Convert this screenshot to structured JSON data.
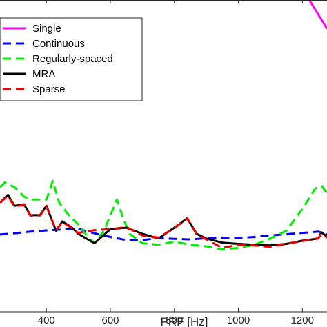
{
  "chart_data": {
    "type": "line",
    "xlabel": "PRF [Hz]",
    "ylabel": "",
    "title": "",
    "xlim": [
      255,
      1277
    ],
    "ylim": [
      0,
      1
    ],
    "x_ticks": [
      400,
      600,
      800,
      1000,
      1200
    ],
    "x_tick_labels": [
      "400",
      "600",
      "800",
      "1000",
      "1200"
    ],
    "grid": false,
    "legend_placement": "top-left",
    "series": [
      {
        "name": "Single",
        "color": "#ff00ff",
        "dash": "solid",
        "x": [
          1210,
          1277
        ],
        "y": [
          1.02,
          0.908
        ]
      },
      {
        "name": "Continuous",
        "color": "#0000ff",
        "dash": "dashed",
        "x": [
          255,
          300,
          350,
          400,
          450,
          500,
          550,
          600,
          650,
          700,
          750,
          800,
          850,
          900,
          950,
          1000,
          1050,
          1100,
          1150,
          1200,
          1250,
          1277
        ],
        "y": [
          0.248,
          0.252,
          0.257,
          0.261,
          0.264,
          0.266,
          0.252,
          0.24,
          0.23,
          0.23,
          0.236,
          0.234,
          0.232,
          0.236,
          0.238,
          0.237,
          0.24,
          0.245,
          0.249,
          0.253,
          0.257,
          0.248
        ]
      },
      {
        "name": "Regularly-spaced",
        "color": "#00ee00",
        "dash": "dashed",
        "x": [
          255,
          270,
          300,
          330,
          350,
          380,
          400,
          420,
          440,
          470,
          500,
          530,
          550,
          580,
          600,
          620,
          640,
          660,
          700,
          750,
          800,
          850,
          900,
          950,
          1000,
          1050,
          1100,
          1150,
          1200,
          1240,
          1260,
          1277
        ],
        "y": [
          0.4,
          0.415,
          0.4,
          0.37,
          0.36,
          0.36,
          0.36,
          0.42,
          0.35,
          0.31,
          0.28,
          0.24,
          0.22,
          0.26,
          0.31,
          0.36,
          0.3,
          0.25,
          0.22,
          0.215,
          0.225,
          0.215,
          0.21,
          0.2,
          0.205,
          0.215,
          0.235,
          0.26,
          0.33,
          0.395,
          0.405,
          0.38
        ]
      },
      {
        "name": "MRA",
        "color": "#000000",
        "dash": "solid",
        "x": [
          255,
          280,
          300,
          330,
          350,
          380,
          400,
          430,
          450,
          480,
          500,
          550,
          600,
          650,
          700,
          750,
          800,
          840,
          870,
          900,
          950,
          1000,
          1050,
          1100,
          1150,
          1200,
          1250,
          1260,
          1277
        ],
        "y": [
          0.35,
          0.375,
          0.34,
          0.345,
          0.31,
          0.31,
          0.34,
          0.26,
          0.29,
          0.27,
          0.25,
          0.22,
          0.265,
          0.27,
          0.25,
          0.235,
          0.27,
          0.3,
          0.25,
          0.235,
          0.222,
          0.218,
          0.215,
          0.213,
          0.218,
          0.228,
          0.235,
          0.255,
          0.24
        ]
      },
      {
        "name": "Sparse",
        "color": "#ee0000",
        "dash": "dashed",
        "x": [
          255,
          280,
          300,
          330,
          350,
          380,
          400,
          430,
          450,
          480,
          500,
          550,
          600,
          650,
          700,
          750,
          800,
          840,
          870,
          900,
          950,
          1000,
          1050,
          1100,
          1150,
          1200,
          1250,
          1260,
          1277
        ],
        "y": [
          0.35,
          0.372,
          0.338,
          0.343,
          0.308,
          0.309,
          0.338,
          0.262,
          0.288,
          0.268,
          0.253,
          0.262,
          0.265,
          0.272,
          0.245,
          0.238,
          0.268,
          0.3,
          0.248,
          0.232,
          0.205,
          0.215,
          0.213,
          0.208,
          0.218,
          0.227,
          0.236,
          0.25,
          0.238
        ]
      }
    ]
  }
}
